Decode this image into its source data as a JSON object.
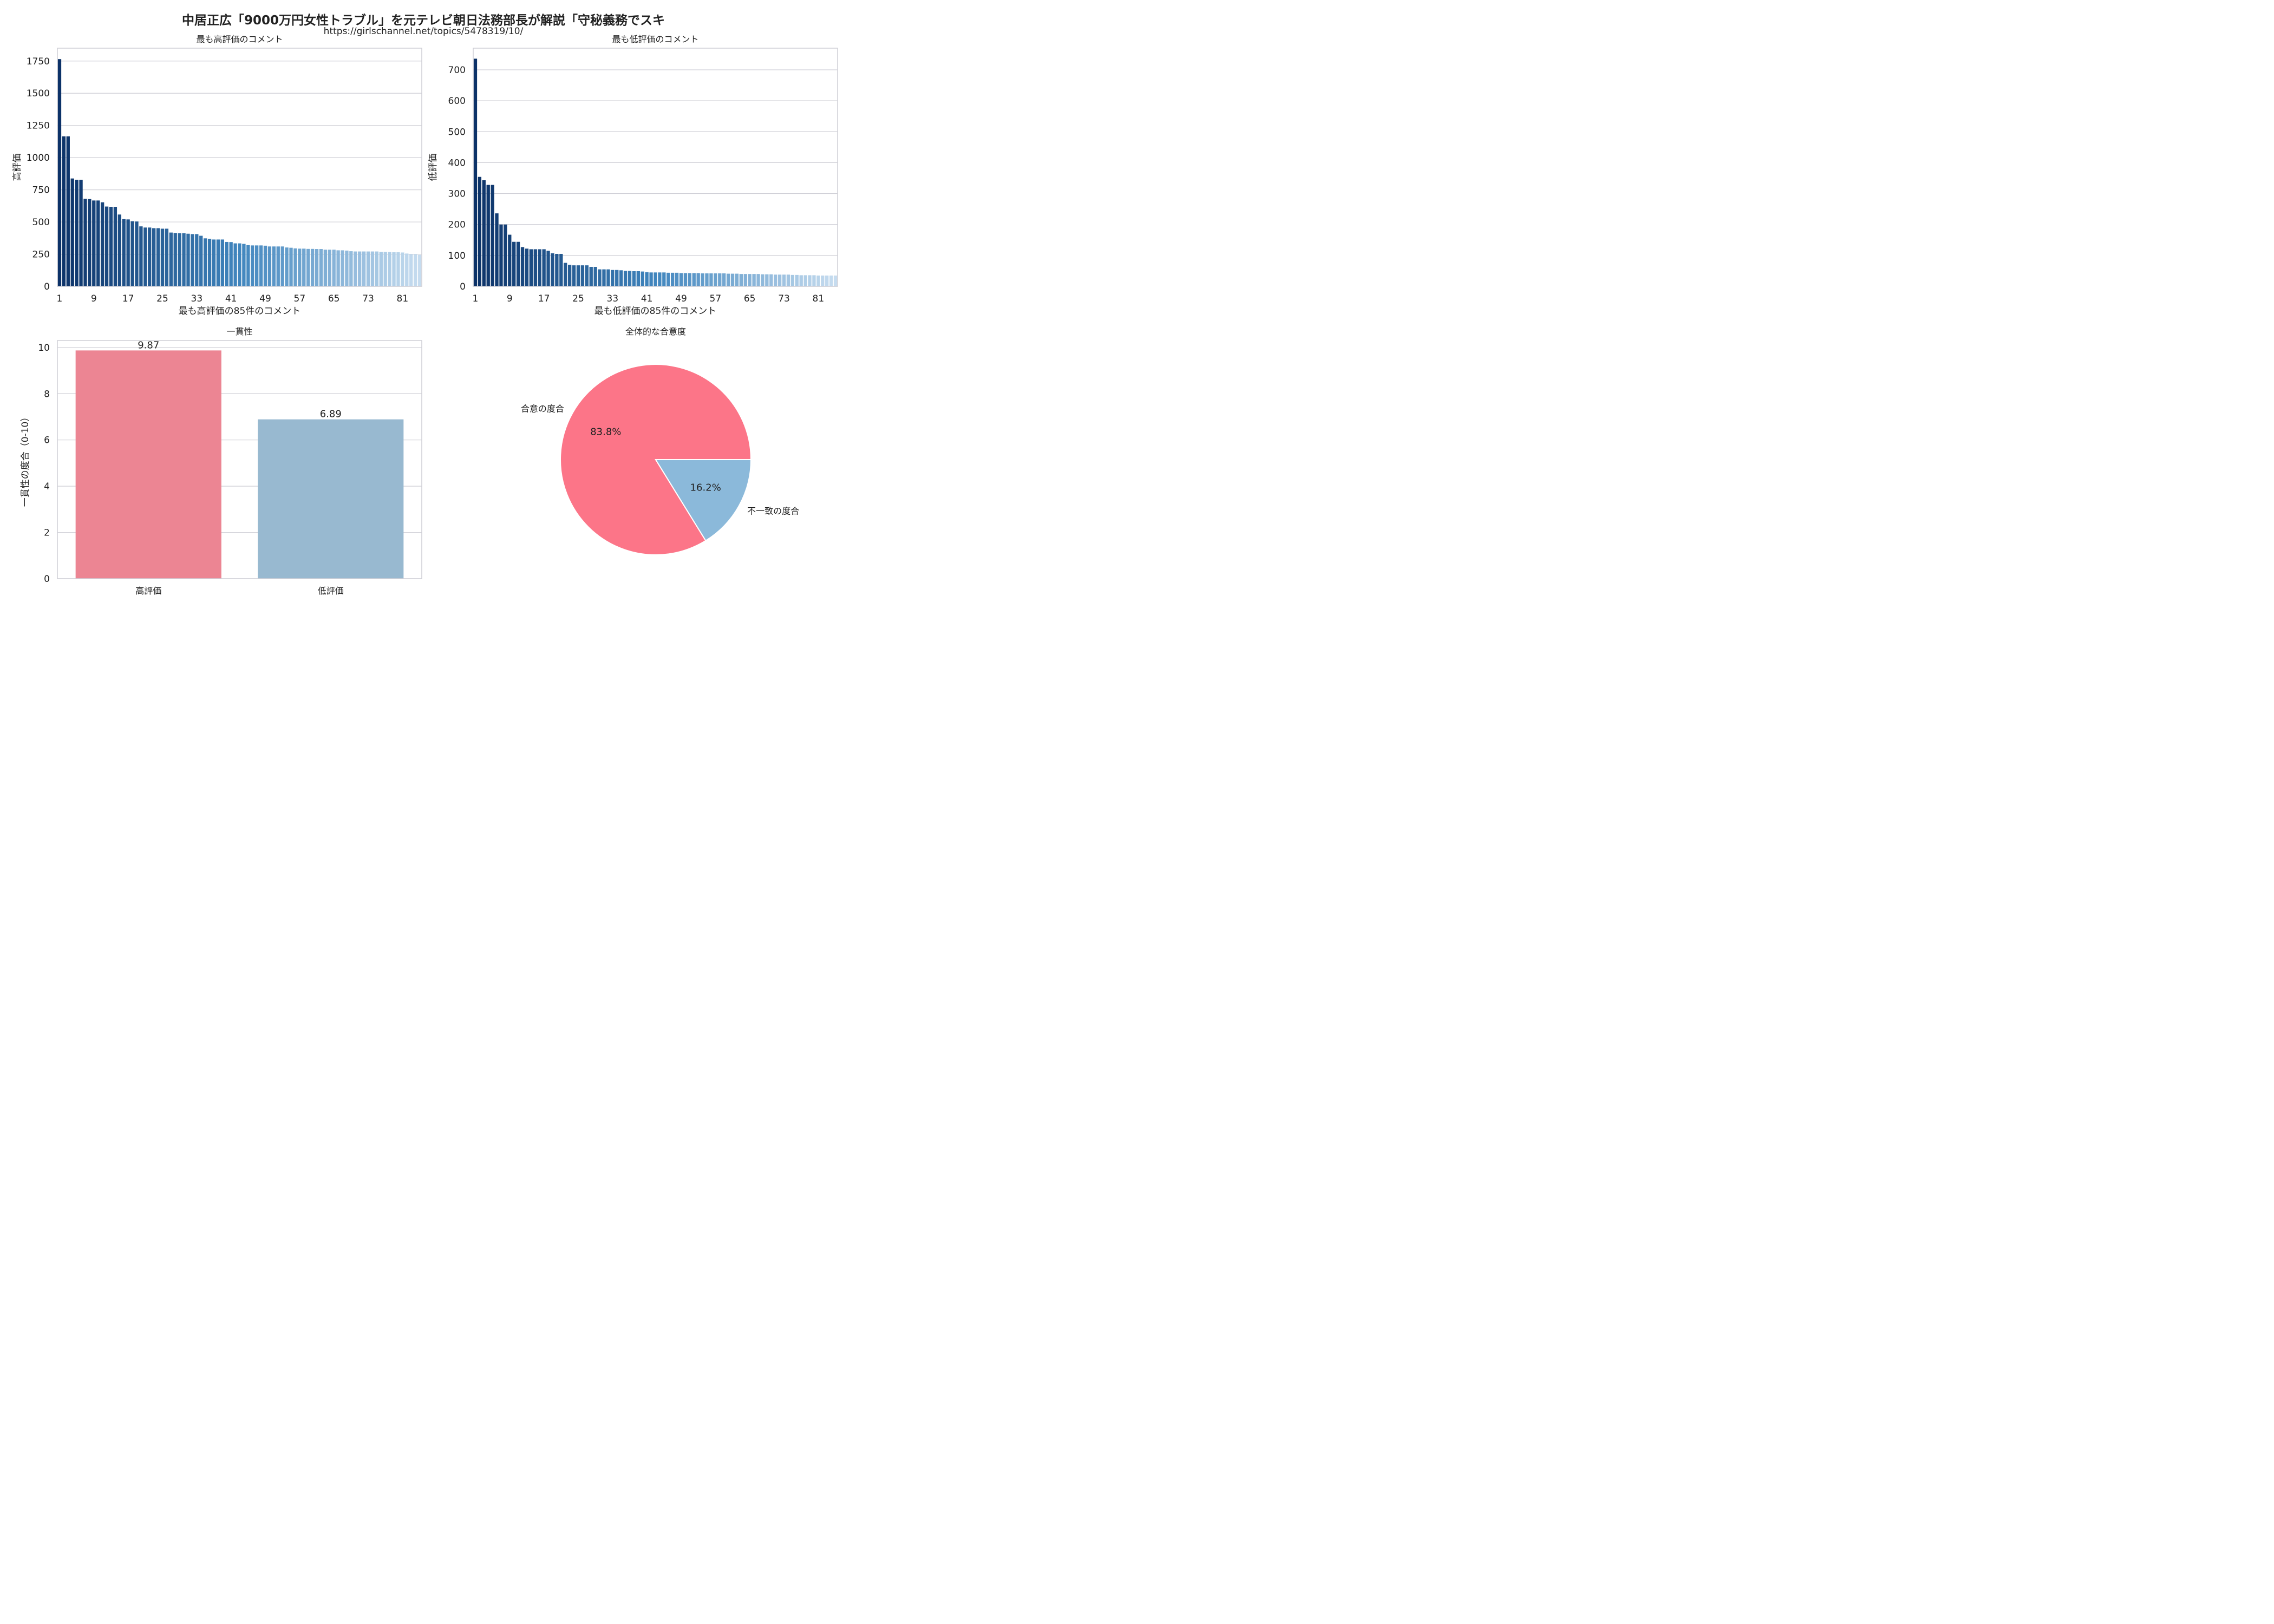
{
  "figure": {
    "title": "中居正広「9000万円女性トラブル」を元テレビ朝日法務部長が解説「守秘義務でスキ",
    "subtitle": "https://girlschannel.net/topics/5478319/10/"
  },
  "chart_data": [
    {
      "type": "bar",
      "title": "最も高評価のコメント",
      "xlabel": "最も高評価の85件のコメント",
      "ylabel": "高評価",
      "ylim": [
        0,
        1850
      ],
      "yticks": [
        0,
        250,
        500,
        750,
        1000,
        1250,
        1500,
        1750
      ],
      "xticks": [
        "1",
        "9",
        "17",
        "25",
        "33",
        "41",
        "49",
        "57",
        "65",
        "73",
        "81"
      ],
      "grid": true,
      "palette": "dark-blue to light-blue gradient",
      "categories": [
        1,
        2,
        3,
        4,
        5,
        6,
        7,
        8,
        9,
        10,
        11,
        12,
        13,
        14,
        15,
        16,
        17,
        18,
        19,
        20,
        21,
        22,
        23,
        24,
        25,
        26,
        27,
        28,
        29,
        30,
        31,
        32,
        33,
        34,
        35,
        36,
        37,
        38,
        39,
        40,
        41,
        42,
        43,
        44,
        45,
        46,
        47,
        48,
        49,
        50,
        51,
        52,
        53,
        54,
        55,
        56,
        57,
        58,
        59,
        60,
        61,
        62,
        63,
        64,
        65,
        66,
        67,
        68,
        69,
        70,
        71,
        72,
        73,
        74,
        75,
        76,
        77,
        78,
        79,
        80,
        81,
        82,
        83,
        84,
        85
      ],
      "values": [
        1765,
        1165,
        1165,
        838,
        828,
        828,
        680,
        678,
        667,
        667,
        653,
        620,
        618,
        618,
        558,
        522,
        520,
        506,
        504,
        466,
        457,
        457,
        452,
        452,
        448,
        448,
        418,
        415,
        413,
        413,
        409,
        406,
        406,
        393,
        373,
        370,
        364,
        364,
        364,
        345,
        344,
        334,
        334,
        330,
        320,
        318,
        318,
        318,
        316,
        310,
        310,
        310,
        310,
        302,
        300,
        295,
        293,
        293,
        291,
        291,
        290,
        290,
        285,
        285,
        285,
        280,
        280,
        278,
        273,
        271,
        271,
        271,
        271,
        271,
        271,
        268,
        268,
        267,
        265,
        265,
        263,
        255,
        250,
        250,
        245
      ]
    },
    {
      "type": "bar",
      "title": "最も低評価のコメント",
      "xlabel": "最も低評価の85件のコメント",
      "ylabel": "低評価",
      "ylim": [
        0,
        770
      ],
      "yticks": [
        0,
        100,
        200,
        300,
        400,
        500,
        600,
        700
      ],
      "xticks": [
        "1",
        "9",
        "17",
        "25",
        "33",
        "41",
        "49",
        "57",
        "65",
        "73",
        "81"
      ],
      "grid": true,
      "palette": "dark-blue to light-blue gradient",
      "categories": [
        1,
        2,
        3,
        4,
        5,
        6,
        7,
        8,
        9,
        10,
        11,
        12,
        13,
        14,
        15,
        16,
        17,
        18,
        19,
        20,
        21,
        22,
        23,
        24,
        25,
        26,
        27,
        28,
        29,
        30,
        31,
        32,
        33,
        34,
        35,
        36,
        37,
        38,
        39,
        40,
        41,
        42,
        43,
        44,
        45,
        46,
        47,
        48,
        49,
        50,
        51,
        52,
        53,
        54,
        55,
        56,
        57,
        58,
        59,
        60,
        61,
        62,
        63,
        64,
        65,
        66,
        67,
        68,
        69,
        70,
        71,
        72,
        73,
        74,
        75,
        76,
        77,
        78,
        79,
        80,
        81,
        82,
        83,
        84,
        85
      ],
      "values": [
        736,
        354,
        343,
        328,
        328,
        236,
        200,
        200,
        167,
        144,
        144,
        127,
        122,
        120,
        120,
        120,
        120,
        115,
        107,
        105,
        105,
        76,
        70,
        68,
        68,
        68,
        68,
        63,
        63,
        55,
        55,
        55,
        53,
        53,
        52,
        50,
        50,
        49,
        49,
        48,
        46,
        45,
        45,
        45,
        45,
        44,
        44,
        44,
        43,
        43,
        43,
        43,
        43,
        42,
        42,
        42,
        42,
        42,
        42,
        41,
        41,
        41,
        40,
        40,
        40,
        40,
        40,
        39,
        39,
        39,
        38,
        38,
        38,
        38,
        37,
        37,
        36,
        36,
        36,
        36,
        35,
        35,
        35,
        35,
        35
      ]
    },
    {
      "type": "bar",
      "title": "一貫性",
      "xlabel": "",
      "ylabel": "一貫性の度合（0-10）",
      "ylim": [
        0,
        10.3
      ],
      "yticks": [
        0,
        2,
        4,
        6,
        8,
        10
      ],
      "categories": [
        "高評価",
        "低評価"
      ],
      "values": [
        9.87,
        6.89
      ],
      "value_labels": [
        "9.87",
        "6.89"
      ],
      "colors": [
        "#EC8593",
        "#98B9D0"
      ],
      "grid": true
    },
    {
      "type": "pie",
      "title": "全体的な合意度",
      "labels": [
        "合意の度合",
        "不一致の度合"
      ],
      "values": [
        83.8,
        16.2
      ],
      "pct_labels": [
        "83.8%",
        "16.2%"
      ],
      "colors": [
        "#FC7588",
        "#8BB9DA"
      ]
    }
  ]
}
